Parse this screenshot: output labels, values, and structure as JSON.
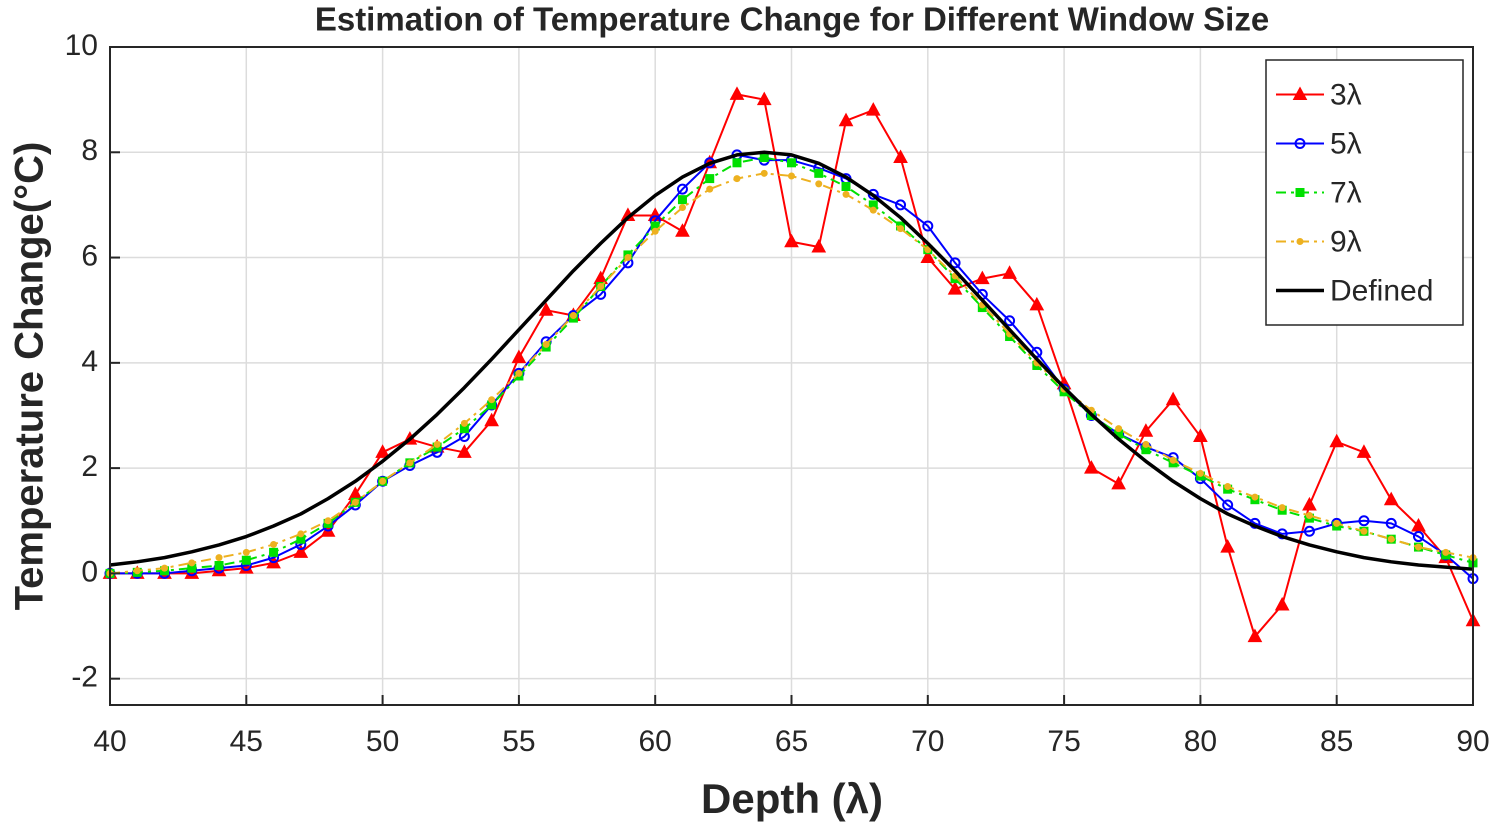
{
  "chart_data": {
    "type": "line",
    "title": "Estimation of Temperature Change for Different Window Size",
    "x_label": "Depth (λ)",
    "y_label": "Temperature Change(°C)",
    "xlim": [
      40,
      90
    ],
    "ylim": [
      -2.5,
      10
    ],
    "xticks": [
      40,
      45,
      50,
      55,
      60,
      65,
      70,
      75,
      80,
      85,
      90
    ],
    "yticks": [
      -2,
      0,
      2,
      4,
      6,
      8,
      10
    ],
    "grid": true,
    "legend_position": "northeast",
    "x": [
      40,
      41,
      42,
      43,
      44,
      45,
      46,
      47,
      48,
      49,
      50,
      51,
      52,
      53,
      54,
      55,
      56,
      57,
      58,
      59,
      60,
      61,
      62,
      63,
      64,
      65,
      66,
      67,
      68,
      69,
      70,
      71,
      72,
      73,
      74,
      75,
      76,
      77,
      78,
      79,
      80,
      81,
      82,
      83,
      84,
      85,
      86,
      87,
      88,
      89,
      90
    ],
    "series": [
      {
        "name": "3λ",
        "color": "#ff0000",
        "marker": "triangle",
        "line_style": "solid",
        "line_width": 2,
        "values": [
          0,
          0,
          0,
          0,
          0.05,
          0.1,
          0.2,
          0.4,
          0.8,
          1.5,
          2.3,
          2.55,
          2.4,
          2.3,
          2.9,
          4.1,
          5.0,
          4.9,
          5.6,
          6.8,
          6.8,
          6.5,
          7.8,
          9.1,
          9.0,
          6.3,
          6.2,
          8.6,
          8.8,
          7.9,
          6.0,
          5.4,
          5.6,
          5.7,
          5.1,
          3.6,
          2.0,
          1.7,
          2.7,
          3.3,
          2.6,
          0.5,
          -1.2,
          -0.6,
          1.3,
          2.5,
          2.3,
          1.4,
          0.9,
          0.3,
          -0.9
        ]
      },
      {
        "name": "5λ",
        "color": "#0000ff",
        "marker": "circle",
        "line_style": "solid",
        "line_width": 2,
        "values": [
          0,
          0,
          0,
          0.05,
          0.1,
          0.15,
          0.3,
          0.55,
          0.9,
          1.3,
          1.75,
          2.05,
          2.3,
          2.6,
          3.2,
          3.8,
          4.4,
          4.9,
          5.3,
          5.9,
          6.7,
          7.3,
          7.8,
          7.95,
          7.85,
          7.85,
          7.7,
          7.5,
          7.2,
          7.0,
          6.6,
          5.9,
          5.3,
          4.8,
          4.2,
          3.5,
          3.0,
          2.65,
          2.4,
          2.2,
          1.8,
          1.3,
          0.95,
          0.75,
          0.8,
          0.95,
          1.0,
          0.95,
          0.7,
          0.35,
          -0.1
        ]
      },
      {
        "name": "7λ",
        "color": "#00e000",
        "marker": "square",
        "line_style": "dashdot",
        "line_width": 2,
        "values": [
          0,
          0.02,
          0.05,
          0.1,
          0.15,
          0.25,
          0.4,
          0.65,
          0.95,
          1.35,
          1.75,
          2.1,
          2.4,
          2.75,
          3.2,
          3.75,
          4.3,
          4.85,
          5.45,
          6.05,
          6.6,
          7.1,
          7.5,
          7.8,
          7.9,
          7.8,
          7.6,
          7.35,
          7.0,
          6.6,
          6.15,
          5.6,
          5.05,
          4.5,
          3.95,
          3.45,
          3.0,
          2.65,
          2.35,
          2.1,
          1.85,
          1.6,
          1.4,
          1.2,
          1.05,
          0.9,
          0.8,
          0.65,
          0.5,
          0.35,
          0.2
        ]
      },
      {
        "name": "9λ",
        "color": "#edb120",
        "marker": "dot",
        "line_style": "dashdot",
        "line_width": 2,
        "values": [
          0,
          0.05,
          0.1,
          0.2,
          0.3,
          0.4,
          0.55,
          0.75,
          1.0,
          1.35,
          1.75,
          2.1,
          2.45,
          2.85,
          3.3,
          3.8,
          4.35,
          4.9,
          5.45,
          6.0,
          6.5,
          6.95,
          7.3,
          7.5,
          7.6,
          7.55,
          7.4,
          7.2,
          6.9,
          6.55,
          6.15,
          5.65,
          5.1,
          4.55,
          4.0,
          3.5,
          3.1,
          2.75,
          2.45,
          2.15,
          1.9,
          1.65,
          1.45,
          1.25,
          1.1,
          0.95,
          0.8,
          0.65,
          0.5,
          0.4,
          0.3
        ]
      },
      {
        "name": "Defined",
        "color": "#000000",
        "marker": "none",
        "line_style": "solid",
        "line_width": 3.5,
        "values": [
          0.16,
          0.22,
          0.3,
          0.41,
          0.54,
          0.7,
          0.9,
          1.13,
          1.42,
          1.75,
          2.13,
          2.55,
          3.02,
          3.53,
          4.07,
          4.63,
          5.19,
          5.75,
          6.27,
          6.76,
          7.18,
          7.53,
          7.79,
          7.95,
          8.0,
          7.95,
          7.79,
          7.53,
          7.18,
          6.76,
          6.27,
          5.75,
          5.19,
          4.63,
          4.07,
          3.53,
          3.02,
          2.55,
          2.13,
          1.75,
          1.42,
          1.13,
          0.9,
          0.7,
          0.54,
          0.41,
          0.3,
          0.22,
          0.16,
          0.12,
          0.08
        ]
      }
    ]
  }
}
